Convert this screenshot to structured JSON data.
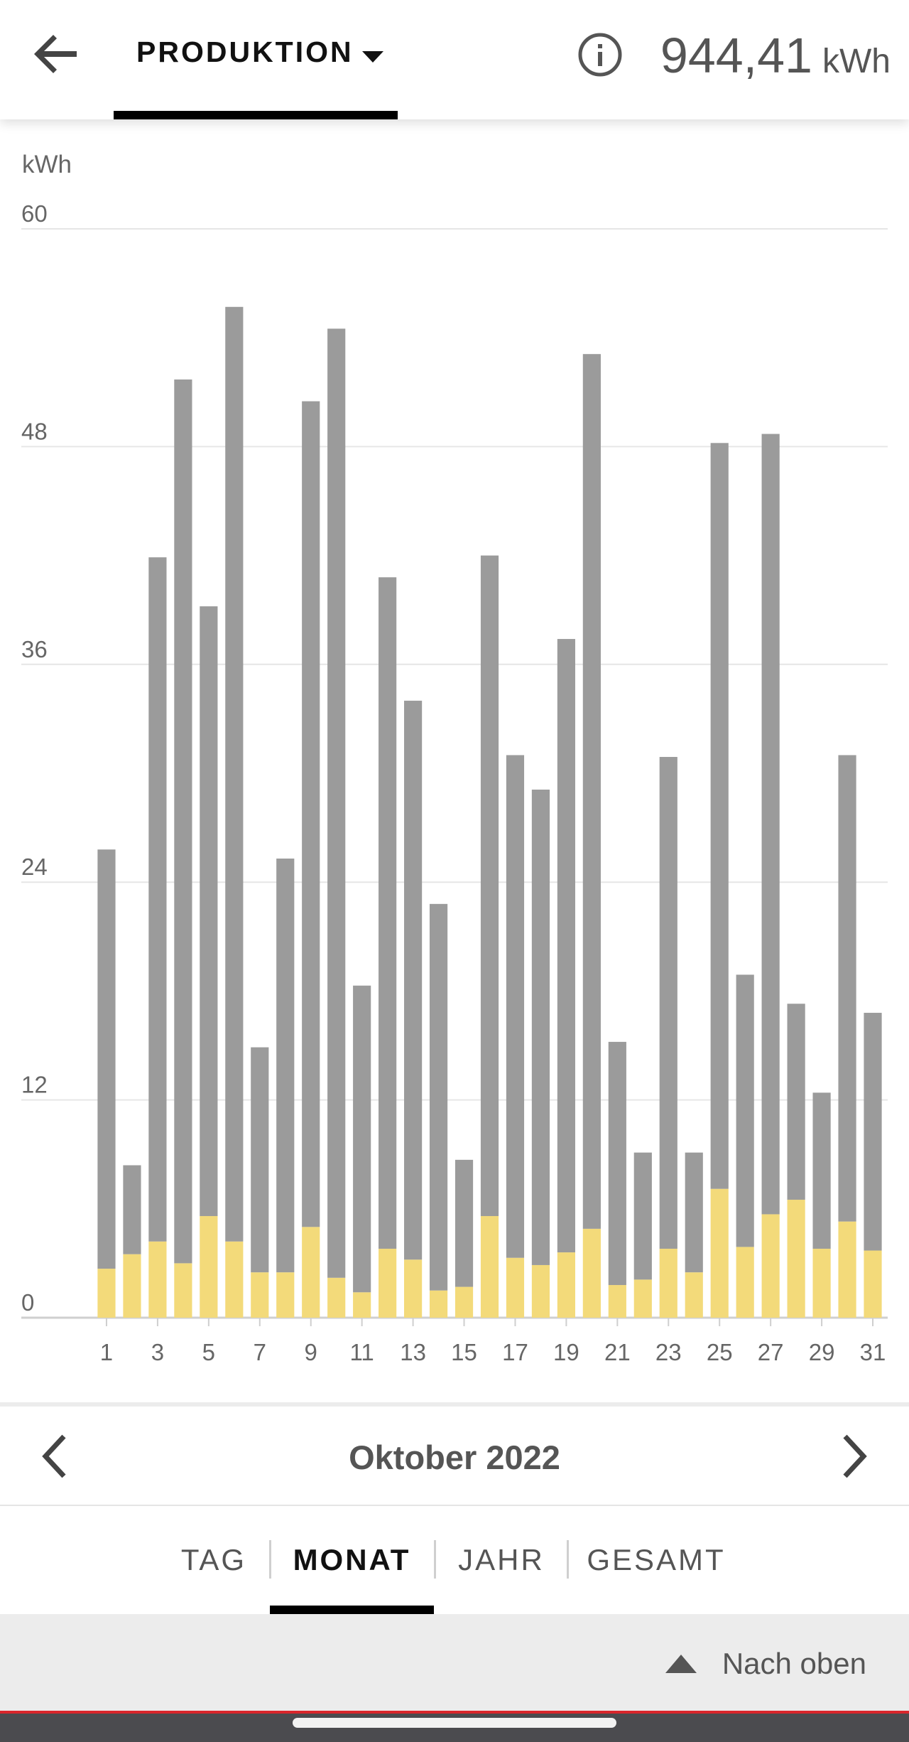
{
  "header": {
    "title": "PRODUKTION",
    "total_value": "944,41",
    "total_unit": "kWh"
  },
  "icons": {
    "back": "arrow-left-icon",
    "dropdown": "caret-down-icon",
    "info": "info-icon",
    "prev": "chevron-left-icon",
    "next": "chevron-right-icon",
    "up": "triangle-up-icon"
  },
  "colors": {
    "primary_bar": "#9b9b9b",
    "secondary_bar": "#f3da7a",
    "accent": "#000000",
    "system_red": "#d9262c"
  },
  "chart_data": {
    "type": "bar",
    "stacked": true,
    "title": "",
    "ylabel": "kWh",
    "xlabel": "",
    "ylim": [
      0,
      60
    ],
    "yticks": [
      0,
      12,
      24,
      36,
      48,
      60
    ],
    "xticks_shown": [
      "1",
      "3",
      "5",
      "7",
      "9",
      "11",
      "13",
      "15",
      "17",
      "19",
      "21",
      "23",
      "25",
      "27",
      "29",
      "31"
    ],
    "grid": true,
    "legend": "none",
    "categories": [
      "1",
      "2",
      "3",
      "4",
      "5",
      "6",
      "7",
      "8",
      "9",
      "10",
      "11",
      "12",
      "13",
      "14",
      "15",
      "16",
      "17",
      "18",
      "19",
      "20",
      "21",
      "22",
      "23",
      "24",
      "25",
      "26",
      "27",
      "28",
      "29",
      "30",
      "31"
    ],
    "series": [
      {
        "color": "#f3da7a",
        "values": [
          2.7,
          3.5,
          4.2,
          3.0,
          5.6,
          4.2,
          2.5,
          2.5,
          5.0,
          2.2,
          1.4,
          3.8,
          3.2,
          1.5,
          1.7,
          5.6,
          3.3,
          2.9,
          3.6,
          4.9,
          1.8,
          2.1,
          3.8,
          2.5,
          7.1,
          3.9,
          5.7,
          6.5,
          3.8,
          5.3,
          3.7
        ]
      },
      {
        "color": "#9b9b9b",
        "values": [
          23.1,
          4.9,
          37.7,
          48.7,
          33.6,
          51.5,
          12.4,
          22.8,
          45.5,
          52.3,
          16.9,
          37.0,
          30.8,
          21.3,
          7.0,
          36.4,
          27.7,
          26.2,
          33.8,
          48.2,
          13.4,
          7.0,
          27.1,
          6.6,
          41.1,
          15.0,
          43.0,
          10.8,
          8.6,
          25.7,
          13.1
        ]
      }
    ]
  },
  "navigation": {
    "month_label": "Oktober 2022"
  },
  "period_tabs": [
    {
      "label": "TAG",
      "active": false
    },
    {
      "label": "MONAT",
      "active": true
    },
    {
      "label": "JAHR",
      "active": false
    },
    {
      "label": "GESAMT",
      "active": false
    }
  ],
  "footer": {
    "back_to_top_label": "Nach oben"
  }
}
